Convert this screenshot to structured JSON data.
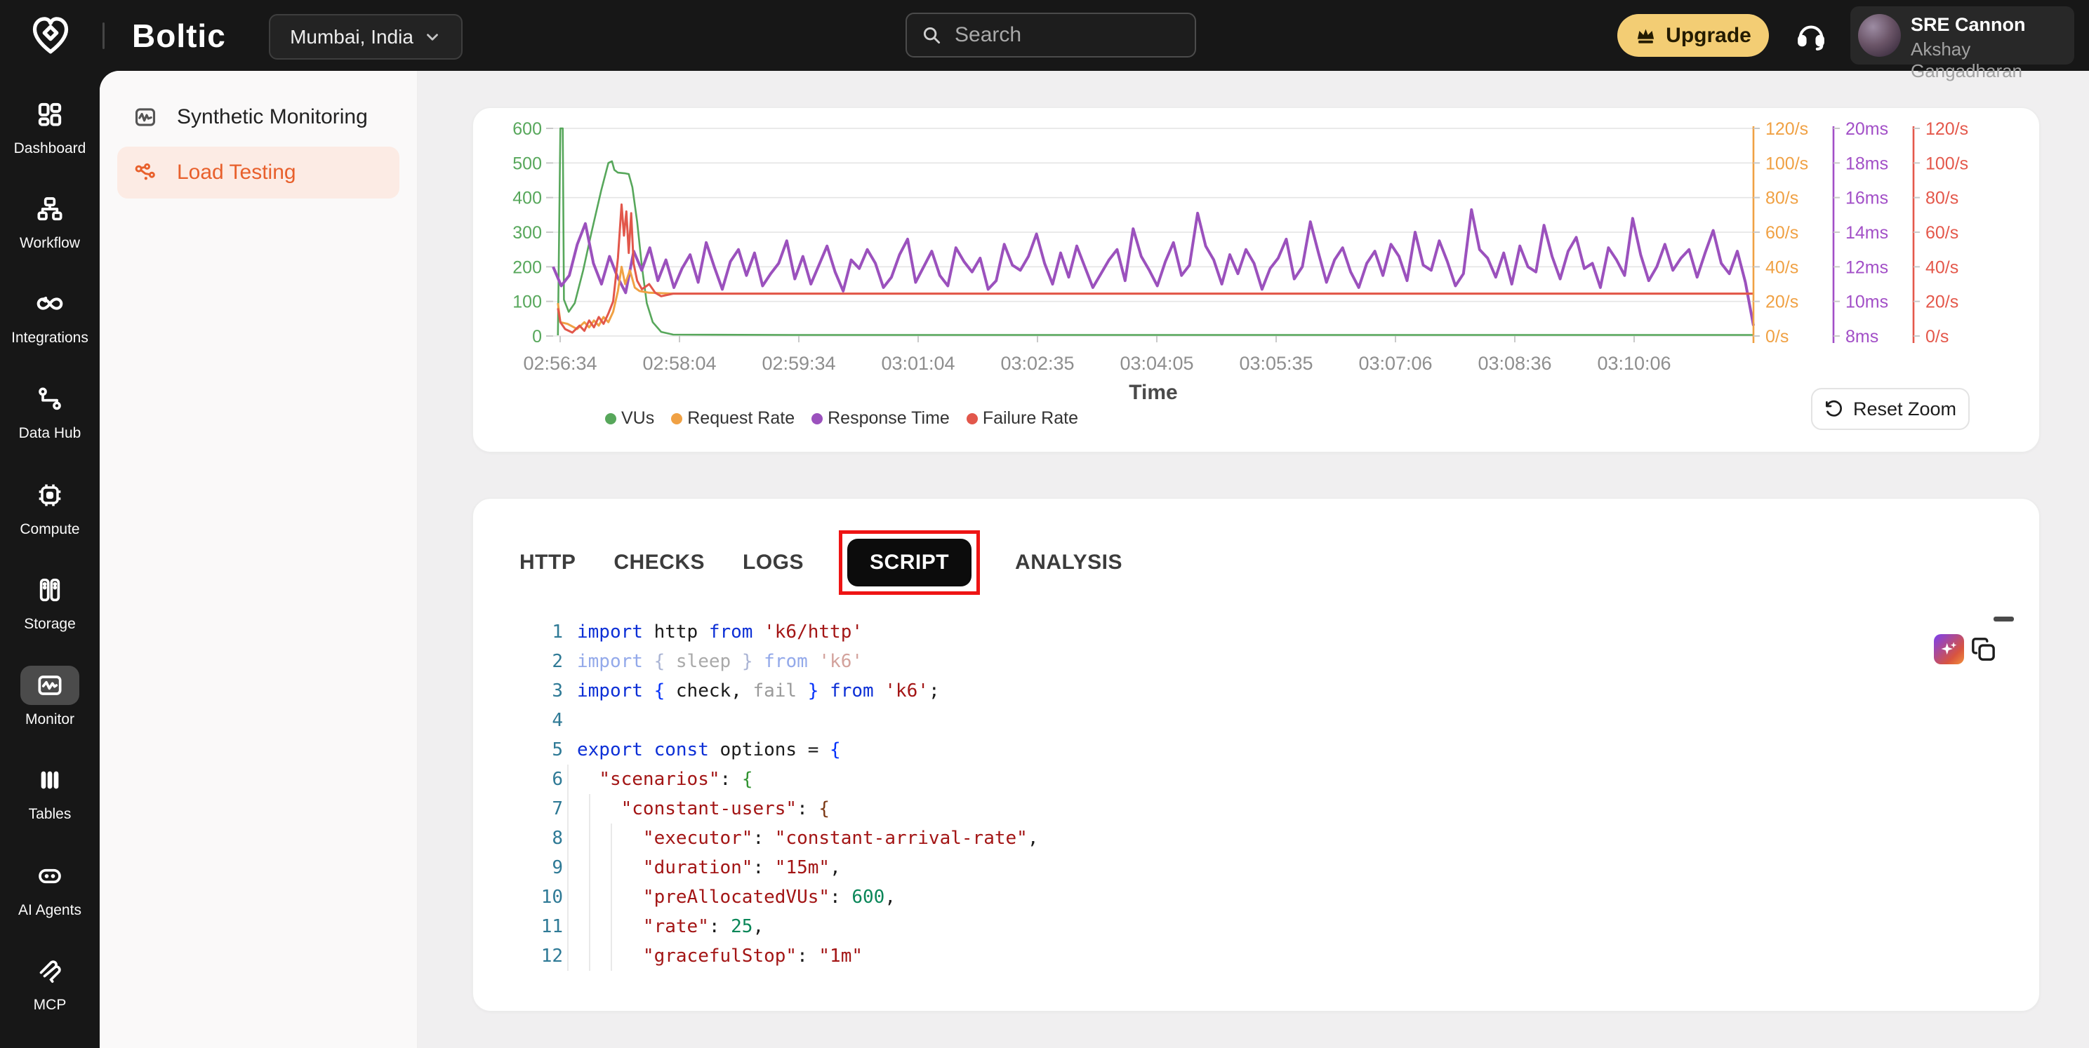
{
  "topbar": {
    "brand": "Boltic",
    "location": "Mumbai, India",
    "search_placeholder": "Search",
    "upgrade_label": "Upgrade",
    "user": {
      "team": "SRE Cannon",
      "name": "Akshay Gangadharan"
    }
  },
  "sidebar": {
    "items": [
      {
        "label": "Dashboard",
        "icon": "grid",
        "active": false
      },
      {
        "label": "Workflow",
        "icon": "workflow",
        "active": false
      },
      {
        "label": "Integrations",
        "icon": "infinity",
        "active": false
      },
      {
        "label": "Data Hub",
        "icon": "datahub",
        "active": false
      },
      {
        "label": "Compute",
        "icon": "chip",
        "active": false
      },
      {
        "label": "Storage",
        "icon": "storage",
        "active": false
      },
      {
        "label": "Monitor",
        "icon": "monitor",
        "active": true
      },
      {
        "label": "Tables",
        "icon": "bars",
        "active": false
      },
      {
        "label": "AI Agents",
        "icon": "robot",
        "active": false
      },
      {
        "label": "MCP",
        "icon": "mcp",
        "active": false
      }
    ]
  },
  "subnav": {
    "items": [
      {
        "label": "Synthetic Monitoring",
        "icon": "monitor-pulse",
        "active": false
      },
      {
        "label": "Load Testing",
        "icon": "share-nodes",
        "active": true
      }
    ],
    "active_color": "#e8602c",
    "active_bg": "#fcebe4"
  },
  "chart_card": {
    "reset_zoom_label": "Reset Zoom"
  },
  "chart_data": {
    "type": "line",
    "xlabel": "Time",
    "x_ticks": [
      "02:56:34",
      "02:58:04",
      "02:59:34",
      "03:01:04",
      "03:02:35",
      "03:04:05",
      "03:05:35",
      "03:07:06",
      "03:08:36",
      "03:10:06"
    ],
    "grid": true,
    "legend_position": "bottom",
    "axes": {
      "left_vus": {
        "color": "#57a75b",
        "min": 0,
        "max": 600,
        "ticks": [
          "600",
          "500",
          "400",
          "300",
          "200",
          "100",
          "0"
        ]
      },
      "right_request": {
        "color": "#f0a144",
        "min": 0,
        "max": 120,
        "ticks": [
          "120/s",
          "100/s",
          "80/s",
          "60/s",
          "40/s",
          "20/s",
          "0/s"
        ]
      },
      "right_response": {
        "color": "#a24fc7",
        "min": 8,
        "max": 20,
        "ticks": [
          "20ms",
          "18ms",
          "16ms",
          "14ms",
          "12ms",
          "10ms",
          "8ms"
        ]
      },
      "right_failure": {
        "color": "#e4584b",
        "min": 0,
        "max": 120,
        "ticks": [
          "120/s",
          "100/s",
          "80/s",
          "60/s",
          "40/s",
          "20/s",
          "0/s"
        ]
      }
    },
    "legend": [
      {
        "label": "VUs",
        "color": "#57a75b"
      },
      {
        "label": "Request Rate",
        "color": "#f0a144"
      },
      {
        "label": "Response Time",
        "color": "#9b51bd"
      },
      {
        "label": "Failure Rate",
        "color": "#e2574b"
      }
    ],
    "series": {
      "vus": {
        "unit": "VUs",
        "axis": "left_vus",
        "points": [
          [
            0.004,
            2
          ],
          [
            0.006,
            600
          ],
          [
            0.008,
            600
          ],
          [
            0.009,
            105
          ],
          [
            0.013,
            70
          ],
          [
            0.018,
            95
          ],
          [
            0.025,
            190
          ],
          [
            0.032,
            300
          ],
          [
            0.04,
            420
          ],
          [
            0.046,
            500
          ],
          [
            0.049,
            505
          ],
          [
            0.051,
            480
          ],
          [
            0.054,
            472
          ],
          [
            0.06,
            470
          ],
          [
            0.063,
            468
          ],
          [
            0.066,
            430
          ],
          [
            0.07,
            330
          ],
          [
            0.074,
            200
          ],
          [
            0.078,
            95
          ],
          [
            0.083,
            40
          ],
          [
            0.09,
            12
          ],
          [
            0.1,
            4
          ],
          [
            0.2,
            3
          ],
          [
            1,
            3
          ]
        ]
      },
      "request_rate": {
        "unit": "/s",
        "axis": "right_request",
        "points": [
          [
            0.004,
            19
          ],
          [
            0.006,
            8
          ],
          [
            0.012,
            7
          ],
          [
            0.02,
            4
          ],
          [
            0.026,
            8
          ],
          [
            0.03,
            5
          ],
          [
            0.034,
            9
          ],
          [
            0.038,
            6
          ],
          [
            0.042,
            11
          ],
          [
            0.046,
            8
          ],
          [
            0.05,
            14
          ],
          [
            0.054,
            26
          ],
          [
            0.057,
            40
          ],
          [
            0.06,
            30
          ],
          [
            0.064,
            38
          ],
          [
            0.068,
            28
          ],
          [
            0.072,
            26
          ],
          [
            0.08,
            25
          ],
          [
            0.1,
            24.5
          ],
          [
            1,
            24.5
          ]
        ]
      },
      "failure_rate": {
        "unit": "/s",
        "axis": "right_failure",
        "points": [
          [
            0.004,
            16
          ],
          [
            0.006,
            8
          ],
          [
            0.01,
            4
          ],
          [
            0.016,
            2
          ],
          [
            0.022,
            6
          ],
          [
            0.026,
            3
          ],
          [
            0.03,
            9
          ],
          [
            0.034,
            5
          ],
          [
            0.038,
            11
          ],
          [
            0.042,
            7
          ],
          [
            0.046,
            13
          ],
          [
            0.05,
            20
          ],
          [
            0.054,
            45
          ],
          [
            0.057,
            76
          ],
          [
            0.059,
            58
          ],
          [
            0.061,
            72
          ],
          [
            0.063,
            48
          ],
          [
            0.065,
            71
          ],
          [
            0.067,
            42
          ],
          [
            0.07,
            32
          ],
          [
            0.074,
            27
          ],
          [
            0.08,
            30
          ],
          [
            0.085,
            25
          ],
          [
            0.09,
            23
          ],
          [
            0.1,
            24.5
          ],
          [
            1,
            24.5
          ]
        ]
      },
      "response_time_ms": {
        "unit": "ms",
        "axis": "right_response",
        "values": [
          12.0,
          10.9,
          11.5,
          13.3,
          14.5,
          12.2,
          11.0,
          12.6,
          11.4,
          10.5,
          12.9,
          11.8,
          13.1,
          11.2,
          12.4,
          10.8,
          11.9,
          12.7,
          11.1,
          13.4,
          12.0,
          10.7,
          12.3,
          13.0,
          11.5,
          12.8,
          10.9,
          11.6,
          12.2,
          13.5,
          11.3,
          12.6,
          11.0,
          12.1,
          13.2,
          11.7,
          10.6,
          12.4,
          11.9,
          13.0,
          12.2,
          10.8,
          11.4,
          12.7,
          13.6,
          11.1,
          12.0,
          12.9,
          11.5,
          10.9,
          13.1,
          12.3,
          11.7,
          12.5,
          10.7,
          11.2,
          13.3,
          12.1,
          11.8,
          12.6,
          13.9,
          12.2,
          11.0,
          12.8,
          11.4,
          13.2,
          12.0,
          10.8,
          11.6,
          12.4,
          13.0,
          11.2,
          14.2,
          12.6,
          11.8,
          10.9,
          12.3,
          13.4,
          11.5,
          12.1,
          15.1,
          13.2,
          12.4,
          11.0,
          12.7,
          11.6,
          13.0,
          12.2,
          10.7,
          11.9,
          12.5,
          13.6,
          11.3,
          12.0,
          14.6,
          12.8,
          11.1,
          12.4,
          13.1,
          11.7,
          10.8,
          12.2,
          12.9,
          11.5,
          13.3,
          12.6,
          11.2,
          14.0,
          12.1,
          11.8,
          13.5,
          12.3,
          10.9,
          11.6,
          15.3,
          13.0,
          12.5,
          11.4,
          12.8,
          11.0,
          13.2,
          12.0,
          11.7,
          14.4,
          12.6,
          11.3,
          12.9,
          13.7,
          11.9,
          12.2,
          10.8,
          13.1,
          12.4,
          11.5,
          14.8,
          12.7,
          11.2,
          12.0,
          13.3,
          11.8,
          12.5,
          13.0,
          11.4,
          12.8,
          14.1,
          12.2,
          11.6,
          12.9,
          11.1,
          8.6
        ]
      }
    }
  },
  "tabs": {
    "items": [
      "HTTP",
      "CHECKS",
      "LOGS",
      "SCRIPT",
      "ANALYSIS"
    ],
    "active": "SCRIPT"
  },
  "code": {
    "lines": [
      {
        "n": "1",
        "guides": 0,
        "tokens": [
          [
            "kw",
            "import"
          ],
          [
            "pl",
            " http "
          ],
          [
            "kw",
            "from"
          ],
          [
            "pl",
            " "
          ],
          [
            "str",
            "'k6/http'"
          ]
        ]
      },
      {
        "n": "2",
        "guides": 0,
        "tokens": [
          [
            "kwdim",
            "import "
          ],
          [
            "bdim",
            "{ "
          ],
          [
            "pldim",
            "sleep"
          ],
          [
            "bdim",
            " }"
          ],
          [
            "kwdim",
            " from"
          ],
          [
            "strdim",
            " 'k6'"
          ]
        ]
      },
      {
        "n": "3",
        "guides": 0,
        "tokens": [
          [
            "kw",
            "import"
          ],
          [
            "pl",
            " "
          ],
          [
            "b1",
            "{"
          ],
          [
            "pl",
            " check, "
          ],
          [
            "gray",
            "fail"
          ],
          [
            "pl",
            " "
          ],
          [
            "b1",
            "}"
          ],
          [
            "pl",
            " "
          ],
          [
            "kw",
            "from"
          ],
          [
            "pl",
            " "
          ],
          [
            "str",
            "'k6'"
          ],
          [
            "pl",
            ";"
          ]
        ]
      },
      {
        "n": "4",
        "guides": 0,
        "tokens": []
      },
      {
        "n": "5",
        "guides": 0,
        "tokens": [
          [
            "kw",
            "export"
          ],
          [
            "pl",
            " "
          ],
          [
            "kw",
            "const"
          ],
          [
            "pl",
            " options = "
          ],
          [
            "b1",
            "{"
          ]
        ]
      },
      {
        "n": "6",
        "guides": 1,
        "tokens": [
          [
            "pl",
            "  "
          ],
          [
            "str",
            "\"scenarios\""
          ],
          [
            "pl",
            ": "
          ],
          [
            "b2",
            "{"
          ]
        ]
      },
      {
        "n": "7",
        "guides": 2,
        "tokens": [
          [
            "pl",
            "    "
          ],
          [
            "str",
            "\"constant-users\""
          ],
          [
            "pl",
            ": "
          ],
          [
            "b3",
            "{"
          ]
        ]
      },
      {
        "n": "8",
        "guides": 3,
        "tokens": [
          [
            "pl",
            "      "
          ],
          [
            "str",
            "\"executor\""
          ],
          [
            "pl",
            ": "
          ],
          [
            "str",
            "\"constant-arrival-rate\""
          ],
          [
            "pl",
            ","
          ]
        ]
      },
      {
        "n": "9",
        "guides": 3,
        "tokens": [
          [
            "pl",
            "      "
          ],
          [
            "str",
            "\"duration\""
          ],
          [
            "pl",
            ": "
          ],
          [
            "str",
            "\"15m\""
          ],
          [
            "pl",
            ","
          ]
        ]
      },
      {
        "n": "10",
        "guides": 3,
        "tokens": [
          [
            "pl",
            "      "
          ],
          [
            "str",
            "\"preAllocatedVUs\""
          ],
          [
            "pl",
            ": "
          ],
          [
            "num",
            "600"
          ],
          [
            "pl",
            ","
          ]
        ]
      },
      {
        "n": "11",
        "guides": 3,
        "tokens": [
          [
            "pl",
            "      "
          ],
          [
            "str",
            "\"rate\""
          ],
          [
            "pl",
            ": "
          ],
          [
            "num",
            "25"
          ],
          [
            "pl",
            ","
          ]
        ]
      },
      {
        "n": "12",
        "guides": 3,
        "tokens": [
          [
            "pl",
            "      "
          ],
          [
            "str",
            "\"gracefulStop\""
          ],
          [
            "pl",
            ": "
          ],
          [
            "str",
            "\"1m\""
          ]
        ]
      }
    ]
  }
}
